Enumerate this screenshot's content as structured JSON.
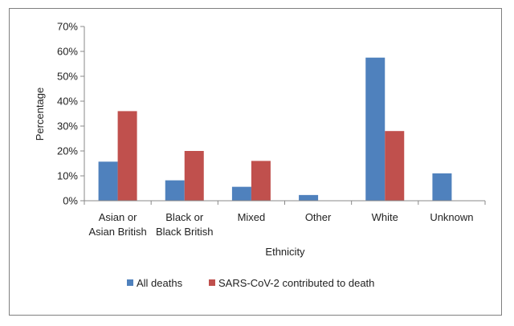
{
  "chart_data": {
    "type": "bar",
    "title": "",
    "xlabel": "Ethnicity",
    "ylabel": "Percentage",
    "ylim": [
      0,
      70
    ],
    "yticks": [
      0,
      10,
      20,
      30,
      40,
      50,
      60,
      70
    ],
    "ytick_suffix": "%",
    "categories": [
      [
        "Asian or",
        "Asian British"
      ],
      [
        "Black or",
        "Black British"
      ],
      [
        "Mixed"
      ],
      [
        "Other"
      ],
      [
        "White"
      ],
      [
        "Unknown"
      ]
    ],
    "series": [
      {
        "name": "All deaths",
        "color": "#4f81bd",
        "values": [
          15.7,
          8.2,
          5.6,
          2.3,
          57.5,
          11.0
        ]
      },
      {
        "name": "SARS-CoV-2 contributed to death",
        "color": "#c0504d",
        "values": [
          36.0,
          20.0,
          16.0,
          0,
          28.0,
          0
        ]
      }
    ],
    "grid": false,
    "legend_position": "bottom"
  }
}
